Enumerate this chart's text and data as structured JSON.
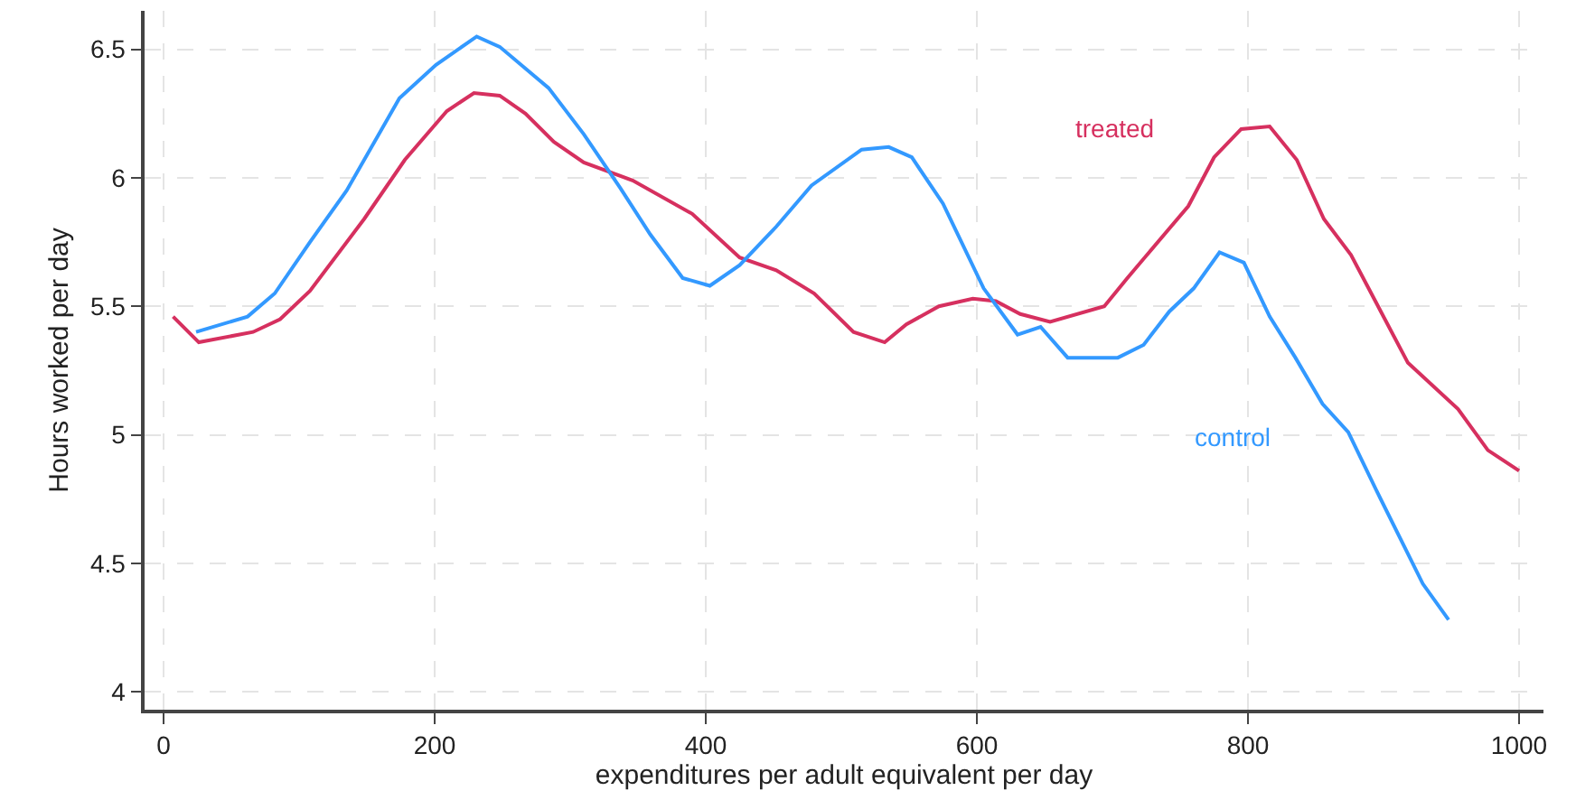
{
  "chart_data": {
    "type": "line",
    "xlabel": "expenditures per adult equivalent per day",
    "ylabel": "Hours worked per day",
    "xlim": [
      -14,
      1018
    ],
    "ylim": [
      3.93,
      6.65
    ],
    "xticks": [
      0,
      200,
      400,
      600,
      800,
      1000
    ],
    "yticks": [
      4,
      4.5,
      5,
      5.5,
      6,
      6.5
    ],
    "grid": true,
    "legend": false,
    "line_style": "solid",
    "marker": "none",
    "series": [
      {
        "name": "treated",
        "color": "#d6305f",
        "x": [
          7,
          26,
          66,
          86,
          108,
          148,
          178,
          209,
          229,
          248,
          267,
          288,
          310,
          346,
          390,
          425,
          452,
          480,
          509,
          532,
          548,
          572,
          597,
          614,
          632,
          654,
          694,
          711,
          756,
          775,
          795,
          816,
          836,
          856,
          876,
          918,
          955,
          977,
          1000
        ],
        "values": [
          5.46,
          5.36,
          5.4,
          5.45,
          5.56,
          5.84,
          6.07,
          6.26,
          6.33,
          6.32,
          6.25,
          6.14,
          6.06,
          5.99,
          5.86,
          5.69,
          5.64,
          5.55,
          5.4,
          5.36,
          5.43,
          5.5,
          5.53,
          5.52,
          5.47,
          5.44,
          5.5,
          5.61,
          5.89,
          6.08,
          6.19,
          6.2,
          6.07,
          5.84,
          5.7,
          5.28,
          5.1,
          4.94,
          4.86
        ]
      },
      {
        "name": "control",
        "color": "#3399ff",
        "x": [
          24,
          62,
          82,
          108,
          135,
          174,
          201,
          231,
          248,
          284,
          310,
          337,
          359,
          383,
          403,
          425,
          452,
          478,
          515,
          535,
          552,
          575,
          605,
          630,
          647,
          667,
          704,
          723,
          742,
          760,
          779,
          797,
          816,
          835,
          855,
          874,
          896,
          929,
          948
        ],
        "values": [
          5.4,
          5.46,
          5.55,
          5.75,
          5.95,
          6.31,
          6.44,
          6.55,
          6.51,
          6.35,
          6.17,
          5.96,
          5.78,
          5.61,
          5.58,
          5.66,
          5.81,
          5.97,
          6.11,
          6.12,
          6.08,
          5.9,
          5.57,
          5.39,
          5.42,
          5.3,
          5.3,
          5.35,
          5.48,
          5.57,
          5.71,
          5.67,
          5.46,
          5.3,
          5.12,
          5.01,
          4.77,
          4.42,
          4.28
        ]
      }
    ]
  }
}
